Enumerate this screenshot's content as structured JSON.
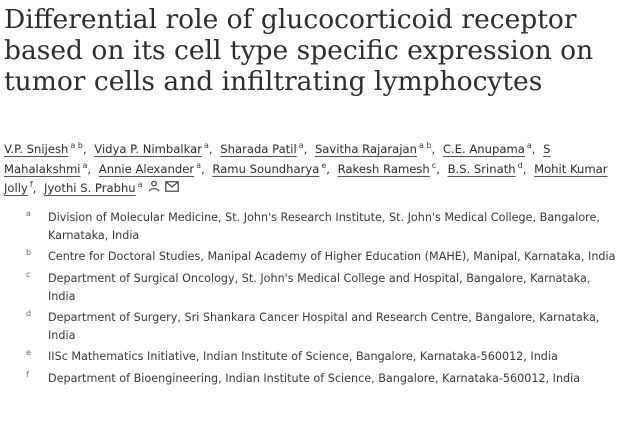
{
  "title": "Differential role of glucocorticoid receptor based on its cell type specific expression on tumor cells and infiltrating lymphocytes",
  "authors": [
    {
      "name": "V.P. Snijesh",
      "sup": "a b"
    },
    {
      "name": "Vidya P. Nimbalkar",
      "sup": "a"
    },
    {
      "name": "Sharada Patil",
      "sup": "a"
    },
    {
      "name": "Savitha Rajarajan",
      "sup": "a b"
    },
    {
      "name": "C.E. Anupama",
      "sup": "a"
    },
    {
      "name": "S Mahalakshmi",
      "sup": "a"
    },
    {
      "name": "Annie Alexander",
      "sup": "a"
    },
    {
      "name": "Ramu Soundharya",
      "sup": "e"
    },
    {
      "name": "Rakesh Ramesh",
      "sup": "c"
    },
    {
      "name": "B.S. Srinath",
      "sup": "d"
    },
    {
      "name": "Mohit Kumar Jolly",
      "sup": "f"
    },
    {
      "name": "Jyothi S. Prabhu",
      "sup": "a"
    }
  ],
  "author_separator": ",",
  "corresponding_icons": [
    "person-icon",
    "envelope-icon"
  ],
  "affiliations": [
    {
      "key": "a",
      "text": "Division of Molecular Medicine, St. John's Research Institute, St. John's Medical College, Bangalore, Karnataka, India"
    },
    {
      "key": "b",
      "text": "Centre for Doctoral Studies, Manipal Academy of Higher Education (MAHE), Manipal, Karnataka, India"
    },
    {
      "key": "c",
      "text": "Department of Surgical Oncology, St. John's Medical College and Hospital, Bangalore, Karnataka, India"
    },
    {
      "key": "d",
      "text": "Department of Surgery, Sri Shankara Cancer Hospital and Research Centre, Bangalore, Karnataka, India"
    },
    {
      "key": "e",
      "text": "IISc Mathematics Initiative, Indian Institute of Science, Bangalore, Karnataka-560012, India"
    },
    {
      "key": "f",
      "text": "Department of Bioengineering, Indian Institute of Science, Bangalore, Karnataka-560012, India"
    }
  ]
}
